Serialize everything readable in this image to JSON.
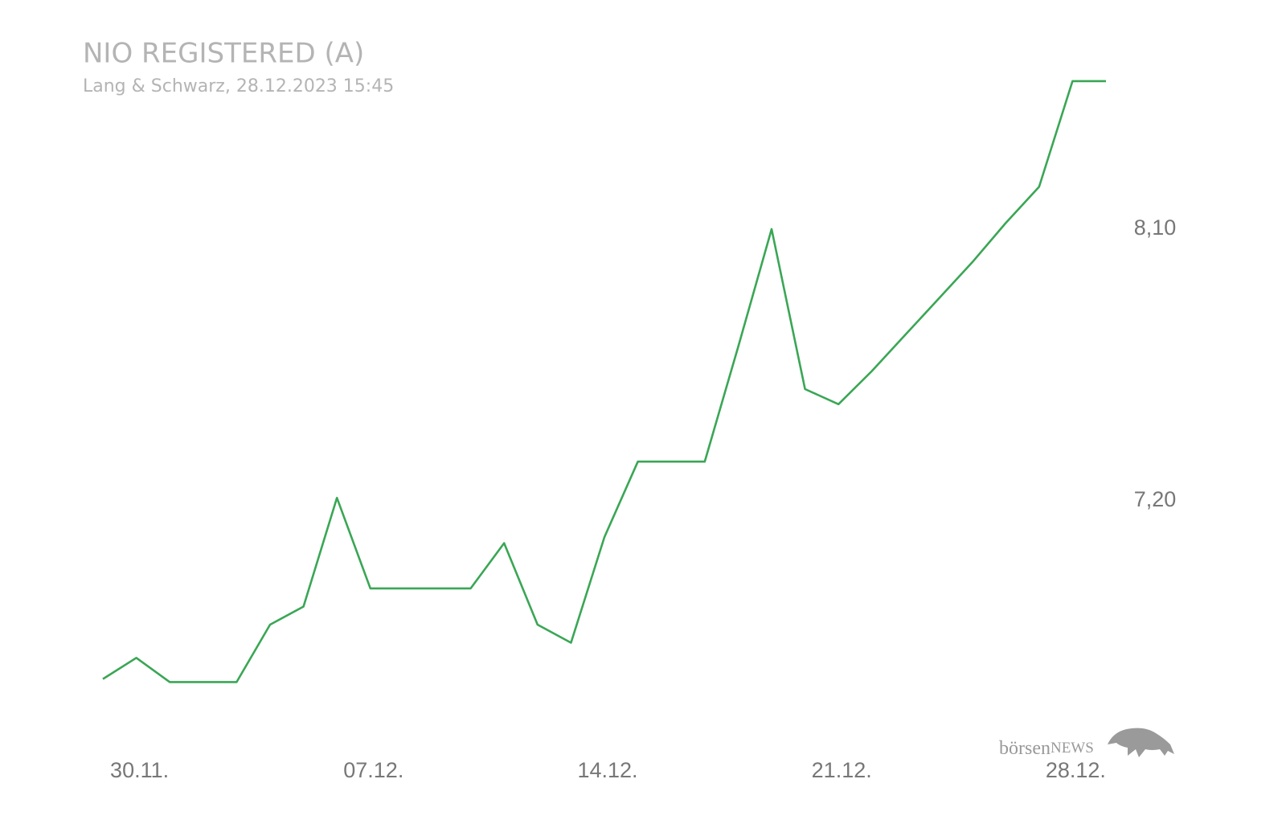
{
  "chart_data": {
    "type": "line",
    "title": "NIO REGISTERED (A)",
    "subtitle": "Lang & Schwarz, 28.12.2023 15:45",
    "source_logo": {
      "brand": "börsen",
      "brand_suffix": "NEWS"
    },
    "categories": [
      null,
      "30.11.",
      null,
      null,
      null,
      null,
      null,
      null,
      "07.12.",
      null,
      null,
      null,
      null,
      null,
      null,
      "14.12.",
      null,
      null,
      null,
      null,
      null,
      null,
      "21.12.",
      null,
      null,
      null,
      null,
      null,
      null,
      "28.12.",
      null
    ],
    "values": [
      6.61,
      6.68,
      6.6,
      6.6,
      6.6,
      6.79,
      6.85,
      7.21,
      6.91,
      6.91,
      6.91,
      6.91,
      7.06,
      6.79,
      6.73,
      7.08,
      7.33,
      7.33,
      7.33,
      7.71,
      8.1,
      7.57,
      7.52,
      7.63,
      7.75,
      7.87,
      7.99,
      8.12,
      8.24,
      8.59,
      8.59
    ],
    "color": "#3aa655",
    "ylim": [
      6.4,
      8.7
    ],
    "yticks": [
      {
        "value": 7.2,
        "label": "7,20"
      },
      {
        "value": 8.1,
        "label": "8,10"
      }
    ],
    "grid": false
  }
}
